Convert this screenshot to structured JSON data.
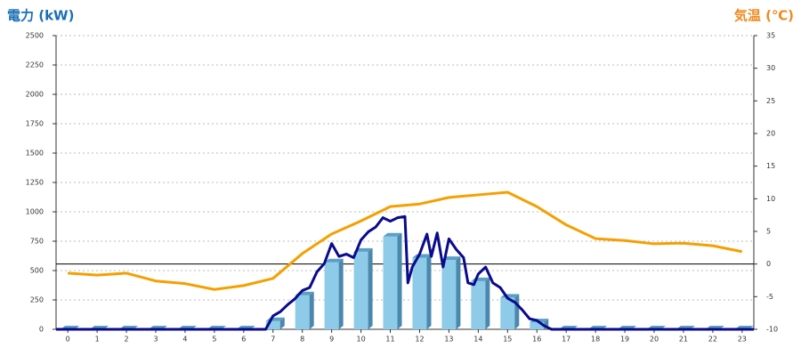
{
  "chart_data": {
    "type": "bar",
    "y_label": "電力 (kW)",
    "y2_label": "気温 (℃)",
    "categories": [
      "0",
      "1",
      "2",
      "3",
      "4",
      "5",
      "6",
      "7",
      "8",
      "9",
      "10",
      "11",
      "12",
      "13",
      "14",
      "15",
      "16",
      "17",
      "18",
      "19",
      "20",
      "21",
      "22",
      "23"
    ],
    "xlim": [
      -0.4,
      23.4
    ],
    "ylim": [
      0,
      2500
    ],
    "yticks": [
      0,
      250,
      500,
      750,
      1000,
      1250,
      1500,
      1750,
      2000,
      2250,
      2500
    ],
    "y2lim": [
      -10,
      35
    ],
    "y2ticks": [
      -10,
      -5,
      0,
      5,
      10,
      15,
      20,
      25,
      30,
      35
    ],
    "grid": true,
    "series": [
      {
        "type": "bar",
        "color": "#8dcbe8",
        "values": [
          0,
          0,
          0,
          0,
          0,
          0,
          0,
          70,
          290,
          570,
          660,
          790,
          610,
          590,
          410,
          270,
          60,
          0,
          0,
          0,
          0,
          0,
          0,
          0
        ]
      },
      {
        "type": "line",
        "axis": "y2",
        "color": "#f5a000",
        "values": [
          -1.4,
          -1.7,
          -1.4,
          -2.6,
          -3.0,
          -3.9,
          -3.3,
          -2.2,
          1.6,
          4.6,
          6.6,
          8.8,
          9.2,
          10.2,
          10.6,
          11.0,
          8.8,
          6.0,
          3.9,
          3.6,
          3.1,
          3.2,
          2.8,
          1.9
        ]
      },
      {
        "type": "line",
        "color": "#0a0a8c",
        "x": [
          -0.4,
          6.75,
          7,
          7.25,
          7.5,
          7.75,
          8,
          8.25,
          8.5,
          8.75,
          9,
          9.25,
          9.5,
          9.75,
          10,
          10.25,
          10.5,
          10.75,
          11,
          11.25,
          11.5,
          11.6,
          11.75,
          12,
          12.25,
          12.4,
          12.6,
          12.8,
          13,
          13.25,
          13.5,
          13.65,
          13.85,
          14,
          14.25,
          14.5,
          14.75,
          15,
          15.25,
          15.5,
          15.75,
          16,
          16.25,
          16.5,
          23.4
        ],
        "values": [
          0,
          0,
          114,
          150,
          210,
          260,
          330,
          355,
          490,
          560,
          730,
          620,
          640,
          610,
          760,
          830,
          870,
          950,
          920,
          950,
          960,
          395,
          530,
          640,
          810,
          620,
          820,
          530,
          770,
          680,
          610,
          395,
          380,
          470,
          530,
          395,
          355,
          265,
          230,
          165,
          90,
          75,
          30,
          0,
          0
        ]
      }
    ]
  }
}
